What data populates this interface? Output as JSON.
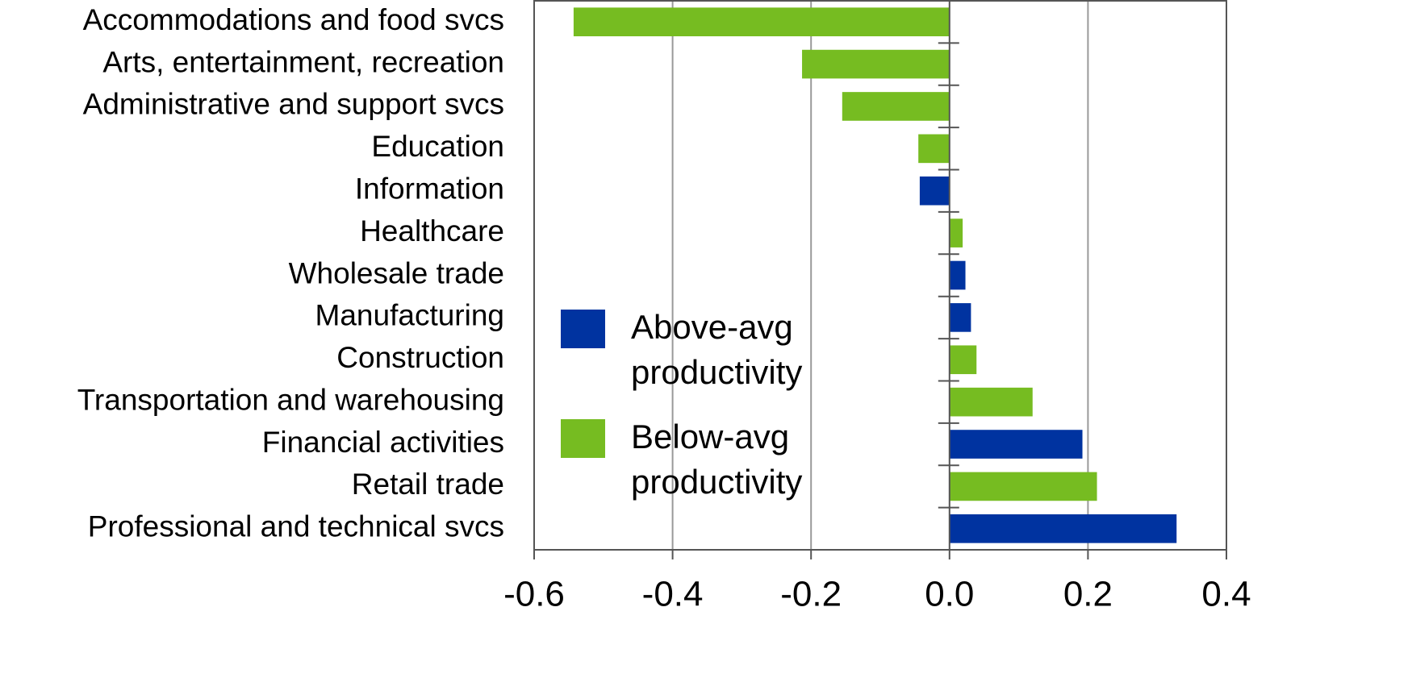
{
  "chart_data": {
    "type": "barh",
    "categories": [
      "Accommodations and food svcs",
      "Arts, entertainment, recreation",
      "Administrative and support svcs",
      "Education",
      "Information",
      "Healthcare",
      "Wholesale trade",
      "Manufacturing",
      "Construction",
      "Transportation and warehousing",
      "Financial activities",
      "Retail trade",
      "Professional and technical svcs"
    ],
    "series": [
      {
        "name": "Above-avg productivity",
        "color": "#0033a0",
        "values": [
          null,
          null,
          null,
          null,
          -0.043,
          null,
          0.023,
          0.031,
          null,
          null,
          0.192,
          null,
          0.328
        ]
      },
      {
        "name": "Below-avg productivity",
        "color": "#76bc21",
        "values": [
          -0.543,
          -0.213,
          -0.155,
          -0.045,
          null,
          0.019,
          null,
          null,
          0.039,
          0.12,
          null,
          0.213,
          null
        ]
      }
    ],
    "xlim": [
      -0.6,
      0.4
    ],
    "xticks": [
      -0.6,
      -0.4,
      -0.2,
      {
        "value": 0,
        "label": "0.0"
      },
      0.2,
      0.4
    ],
    "grid": true,
    "legend": "center"
  }
}
